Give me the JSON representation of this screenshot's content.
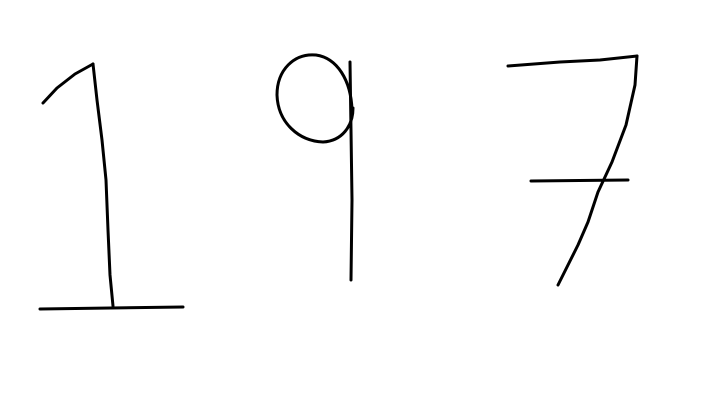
{
  "canvas": {
    "background": "#ffffff",
    "ink_color": "#000000"
  },
  "digits": [
    {
      "name": "digit-1",
      "value": "1"
    },
    {
      "name": "digit-9",
      "value": "9"
    },
    {
      "name": "digit-7",
      "value": "7"
    }
  ]
}
